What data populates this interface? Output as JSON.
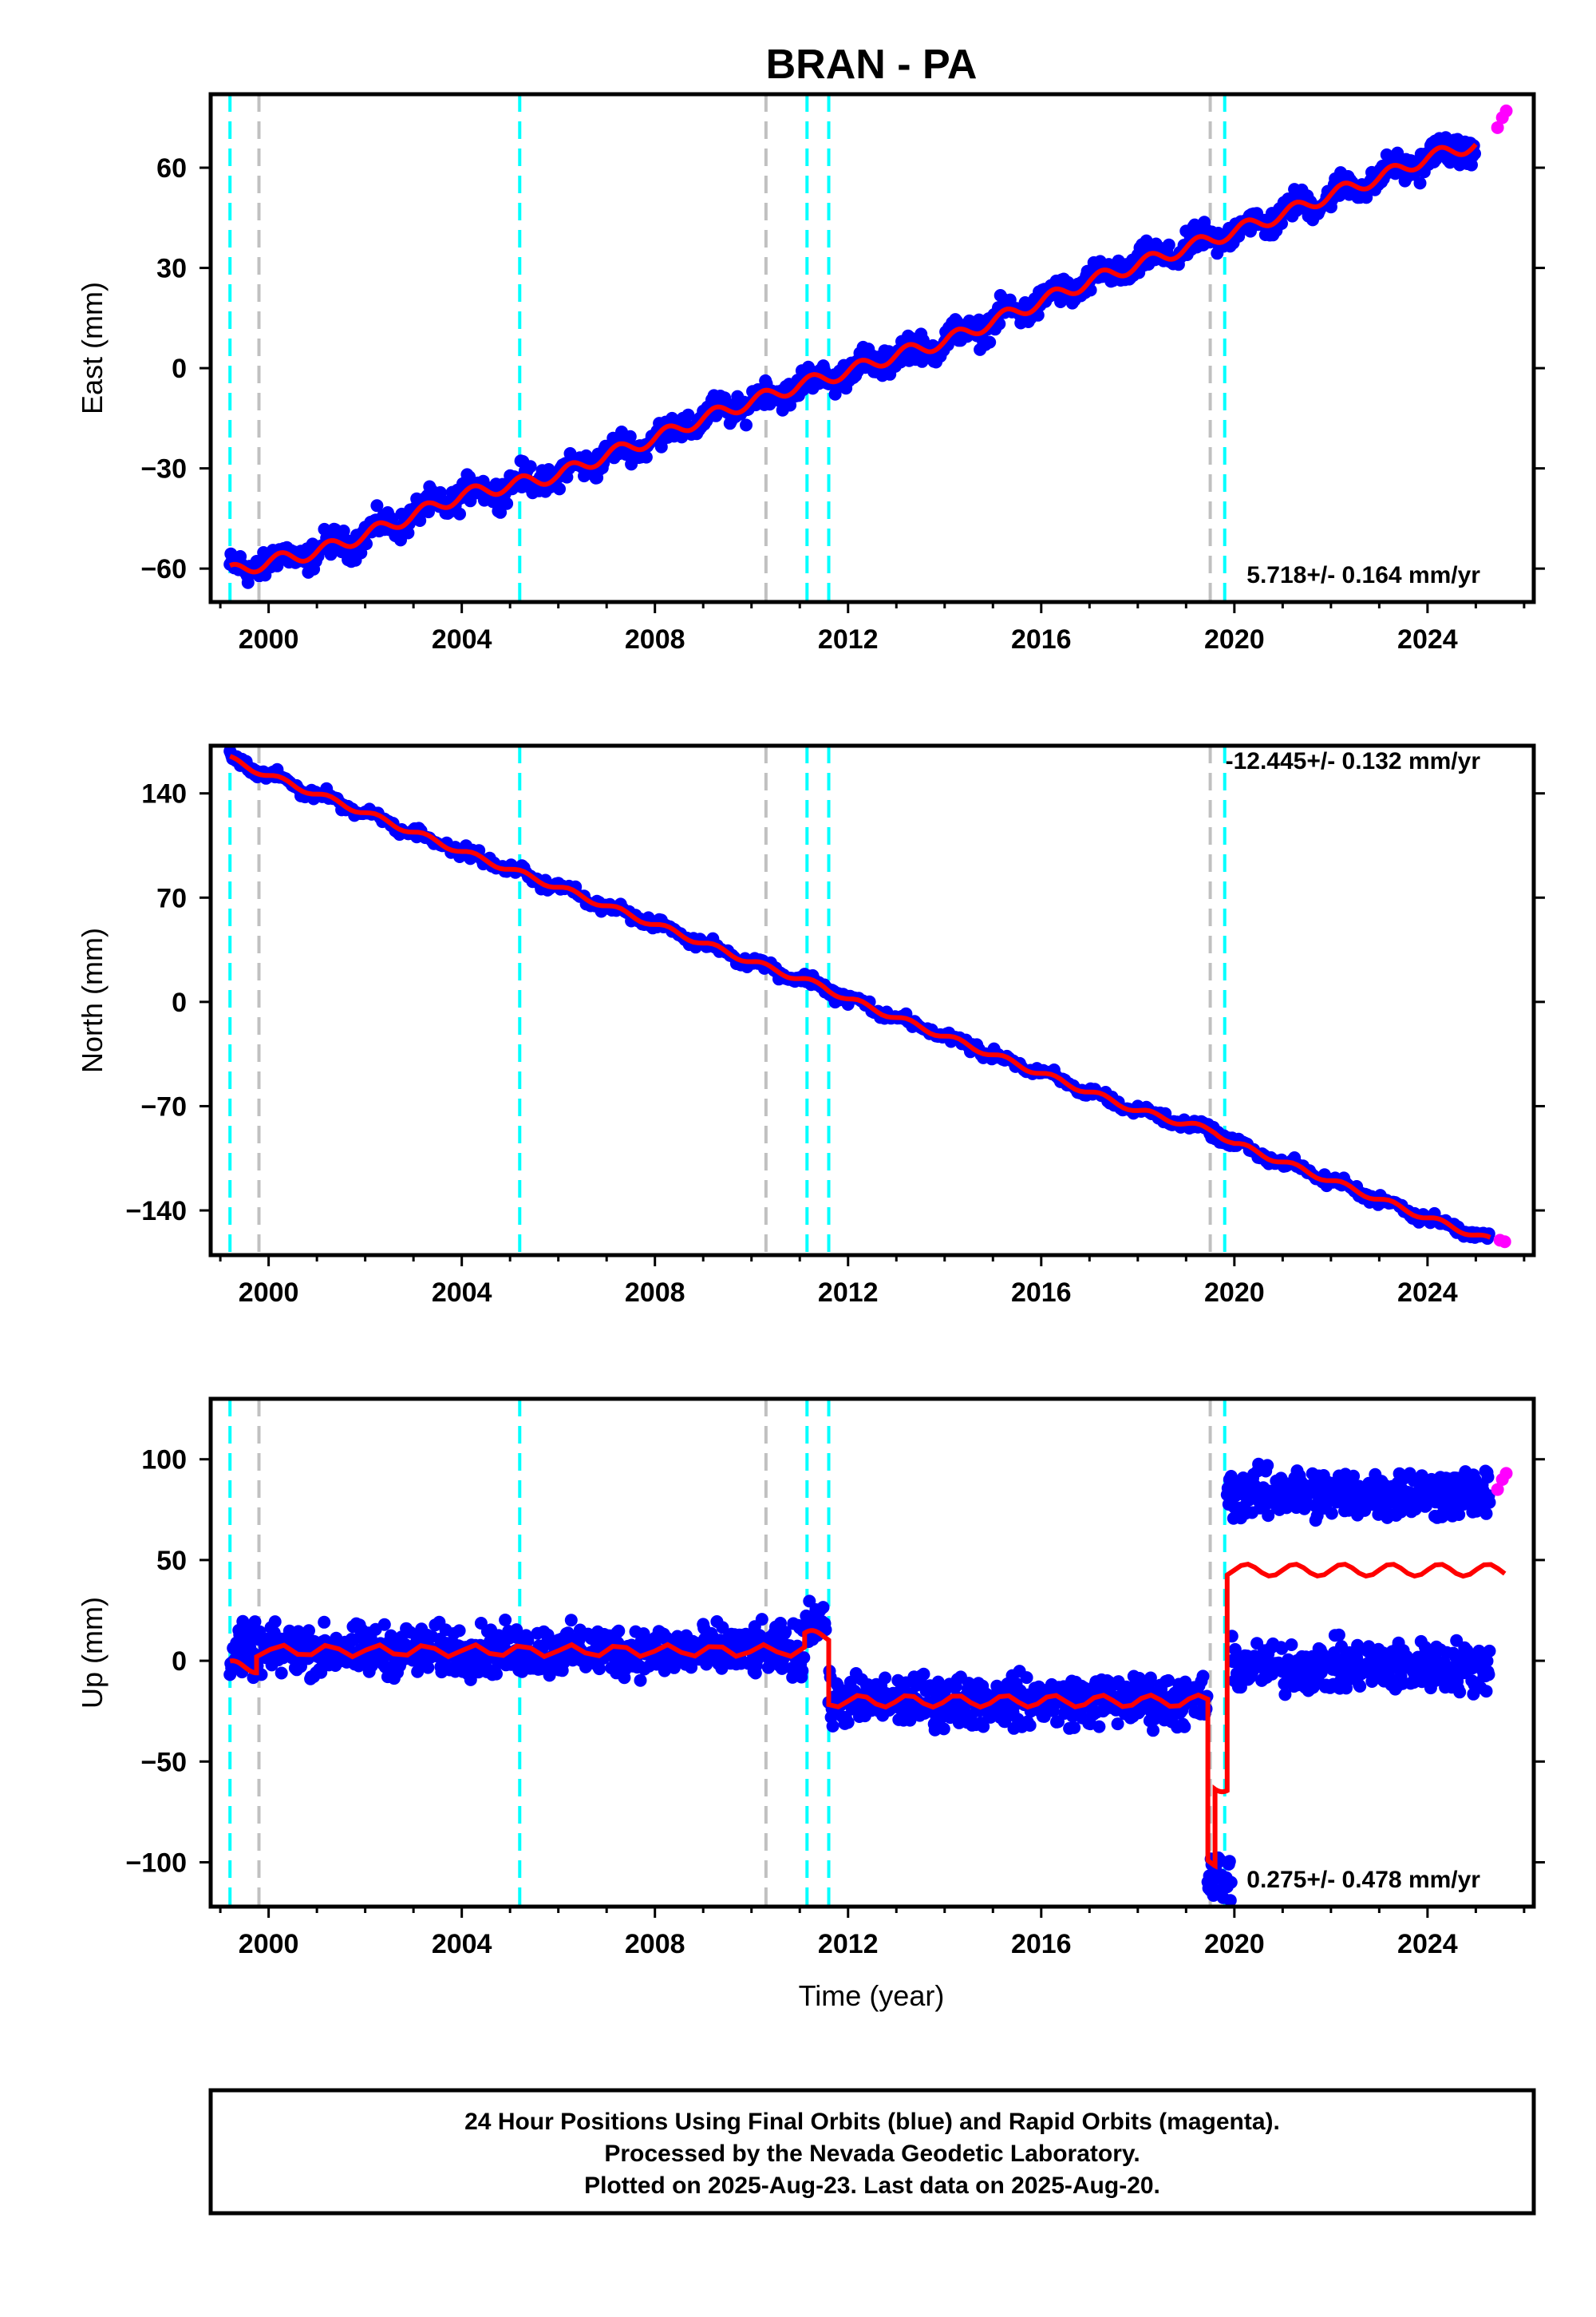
{
  "figure": {
    "title": "BRAN - PA",
    "xlabel": "Time (year)",
    "caption": [
      "24 Hour Positions Using Final Orbits (blue) and Rapid Orbits (magenta).",
      "Processed by the Nevada Geodetic Laboratory.",
      "Plotted on 2025-Aug-23. Last data on 2025-Aug-20."
    ]
  },
  "colors": {
    "final_orbits": "#0000ff",
    "rapid_orbits": "#ff00ff",
    "model_fit": "#ff0000",
    "equipment_change": "#00ffff",
    "other_event": "#c0c0c0",
    "frame": "#000000"
  },
  "chart_data": [
    {
      "type": "scatter",
      "panel": "east",
      "ylabel": "East (mm)",
      "rate_label": "5.718+/- 0.164 mm/yr",
      "xlim": [
        1998.8,
        2026.2
      ],
      "ylim": [
        -70,
        82
      ],
      "xticks": [
        "2000",
        "2004",
        "2008",
        "2012",
        "2016",
        "2020",
        "2024"
      ],
      "yticks": [
        "60",
        "30",
        "0",
        "−30",
        "−60"
      ],
      "grid": false,
      "series": [
        {
          "name": "Final Orbits",
          "x": [
            1999.2,
            2000.0,
            2001.0,
            2002.0,
            2003.0,
            2004.0,
            2005.0,
            2006.0,
            2007.0,
            2008.0,
            2009.0,
            2010.0,
            2011.0,
            2012.0,
            2013.0,
            2014.0,
            2015.0,
            2016.0,
            2017.0,
            2018.0,
            2019.0,
            2020.0,
            2021.0,
            2022.0,
            2023.0,
            2024.0,
            2025.0
          ],
          "y": [
            -61,
            -58,
            -55,
            -50,
            -44,
            -38,
            -35,
            -32,
            -26,
            -21,
            -15,
            -10,
            -5,
            -1,
            4,
            8,
            14,
            20,
            26,
            31,
            36,
            41,
            46,
            52,
            57,
            63,
            67
          ]
        },
        {
          "name": "Rapid Orbits",
          "x": [
            2025.45,
            2025.55,
            2025.63
          ],
          "y": [
            72,
            75,
            77
          ]
        }
      ]
    },
    {
      "type": "scatter",
      "panel": "north",
      "ylabel": "North (mm)",
      "rate_label": "-12.445+/- 0.132 mm/yr",
      "xlim": [
        1998.8,
        2026.2
      ],
      "ylim": [
        -170,
        172
      ],
      "xticks": [
        "2000",
        "2004",
        "2008",
        "2012",
        "2016",
        "2020",
        "2024"
      ],
      "yticks": [
        "140",
        "70",
        "0",
        "−70",
        "−140"
      ],
      "grid": false,
      "series": [
        {
          "name": "Final Orbits",
          "x": [
            1999.2,
            2000.0,
            2002.0,
            2004.0,
            2006.0,
            2008.0,
            2010.0,
            2011.5,
            2012.0,
            2014.0,
            2016.0,
            2018.0,
            2019.6,
            2020.0,
            2022.0,
            2024.0,
            2025.3
          ],
          "y": [
            163,
            152,
            127,
            101,
            77,
            52,
            27,
            10,
            2,
            -23,
            -48,
            -73,
            -87,
            -95,
            -120,
            -145,
            -160
          ]
        },
        {
          "name": "Rapid Orbits",
          "x": [
            2025.5,
            2025.6
          ],
          "y": [
            -160,
            -161
          ]
        }
      ]
    },
    {
      "type": "scatter",
      "panel": "up",
      "ylabel": "Up (mm)",
      "rate_label": "0.275+/- 0.478 mm/yr",
      "xlim": [
        1998.8,
        2026.2
      ],
      "ylim": [
        -122,
        130
      ],
      "xticks": [
        "2000",
        "2004",
        "2008",
        "2012",
        "2016",
        "2020",
        "2024"
      ],
      "yticks": [
        "100",
        "50",
        "0",
        "−50",
        "−100"
      ],
      "grid": false,
      "series": [
        {
          "name": "Final Orbits",
          "segments": [
            {
              "x0": 1999.2,
              "x1": 2011.1,
              "y": 5
            },
            {
              "x0": 2011.1,
              "x1": 2011.55,
              "y": 20
            },
            {
              "x0": 2011.6,
              "x1": 2019.45,
              "y": -20
            },
            {
              "x0": 2019.45,
              "x1": 2019.95,
              "y": -108
            },
            {
              "x0": 2019.85,
              "x1": 2025.3,
              "y": 83
            },
            {
              "x0": 2019.95,
              "x1": 2025.3,
              "y": -3
            }
          ]
        },
        {
          "name": "Rapid Orbits",
          "x": [
            2025.45,
            2025.55,
            2025.63
          ],
          "y": [
            85,
            90,
            93
          ]
        }
      ]
    }
  ],
  "events": {
    "equipment_change": [
      1999.2,
      2005.2,
      2011.15,
      2011.6,
      2019.8
    ],
    "other": [
      1999.8,
      2010.3,
      2019.5
    ]
  }
}
